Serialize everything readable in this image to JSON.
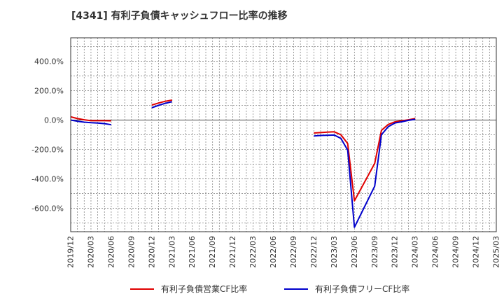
{
  "chart_data": {
    "type": "line",
    "title": "[4341]  有利子負債キャッシュフロー比率の推移",
    "xlabel": "",
    "ylabel": "",
    "ylim": [
      -760,
      560
    ],
    "y_ticks": [
      400,
      200,
      0,
      -200,
      -400,
      -600
    ],
    "y_tick_labels": [
      "400.0%",
      "200.0%",
      "0.0%",
      "-200.0%",
      "-400.0%",
      "-600.0%"
    ],
    "x_tick_labels": [
      "2019/12",
      "2020/03",
      "2020/06",
      "2020/09",
      "2020/12",
      "2021/03",
      "2021/06",
      "2021/09",
      "2021/12",
      "2022/03",
      "2022/06",
      "2022/09",
      "2022/12",
      "2023/03",
      "2023/06",
      "2023/09",
      "2023/12",
      "2024/03",
      "2024/06",
      "2024/09",
      "2024/12",
      "2025/03"
    ],
    "grid": true,
    "legend_position": "bottom",
    "series": [
      {
        "name": "有利子負債営業CF比率",
        "color": "#e00000",
        "segments": [
          [
            [
              "2019/12",
              22
            ],
            [
              "2020/01",
              10
            ],
            [
              "2020/02",
              2
            ],
            [
              "2020/03",
              -4
            ],
            [
              "2020/04",
              -4
            ],
            [
              "2020/05",
              -4
            ],
            [
              "2020/06",
              -5
            ]
          ],
          [
            [
              "2020/12",
              102
            ],
            [
              "2021/01",
              116
            ],
            [
              "2021/02",
              128
            ],
            [
              "2021/03",
              136
            ]
          ],
          [
            [
              "2022/12",
              -88
            ],
            [
              "2023/01",
              -85
            ],
            [
              "2023/02",
              -82
            ],
            [
              "2023/03",
              -80
            ],
            [
              "2023/04",
              -100
            ],
            [
              "2023/05",
              -160
            ],
            [
              "2023/06",
              -550
            ],
            [
              "2023/09",
              -295
            ],
            [
              "2023/10",
              -70
            ],
            [
              "2023/11",
              -30
            ],
            [
              "2023/12",
              -12
            ],
            [
              "2024/01",
              -5
            ],
            [
              "2024/02",
              2
            ],
            [
              "2024/03",
              10
            ]
          ]
        ]
      },
      {
        "name": "有利子負債フリーCF比率",
        "color": "#0000cc",
        "segments": [
          [
            [
              "2019/12",
              0
            ],
            [
              "2020/01",
              -8
            ],
            [
              "2020/02",
              -14
            ],
            [
              "2020/03",
              -18
            ],
            [
              "2020/04",
              -20
            ],
            [
              "2020/05",
              -24
            ],
            [
              "2020/06",
              -32
            ]
          ],
          [
            [
              "2020/12",
              84
            ],
            [
              "2021/01",
              100
            ],
            [
              "2021/02",
              114
            ],
            [
              "2021/03",
              125
            ]
          ],
          [
            [
              "2022/12",
              -108
            ],
            [
              "2023/01",
              -105
            ],
            [
              "2023/02",
              -104
            ],
            [
              "2023/03",
              -102
            ],
            [
              "2023/04",
              -125
            ],
            [
              "2023/05",
              -205
            ],
            [
              "2023/06",
              -730
            ],
            [
              "2023/09",
              -450
            ],
            [
              "2023/10",
              -100
            ],
            [
              "2023/11",
              -45
            ],
            [
              "2023/12",
              -20
            ],
            [
              "2024/01",
              -12
            ],
            [
              "2024/02",
              -2
            ],
            [
              "2024/03",
              5
            ]
          ]
        ]
      }
    ]
  }
}
